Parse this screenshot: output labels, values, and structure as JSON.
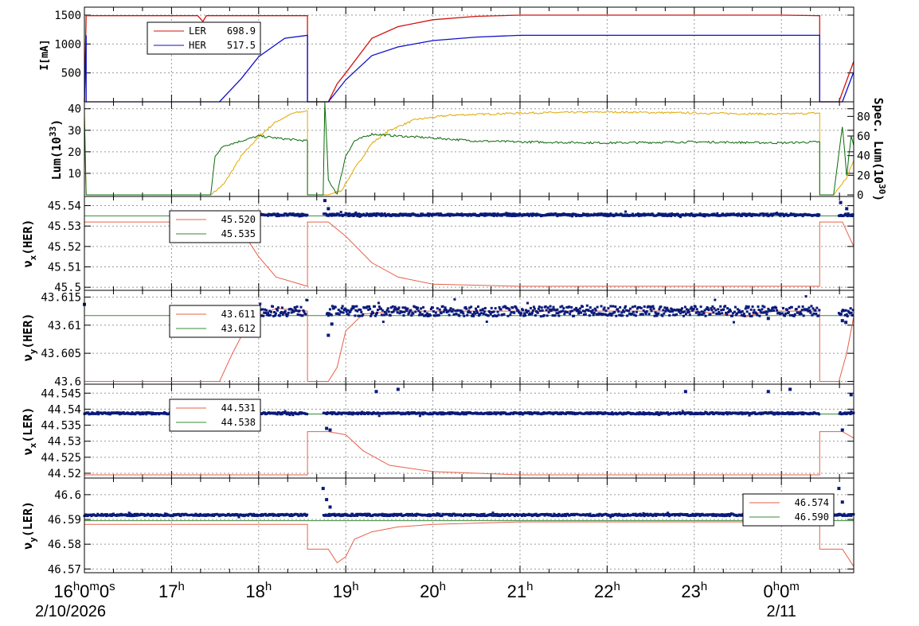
{
  "colors": {
    "ler": "#d0140f",
    "her": "#1010c8",
    "lum": "#e0a800",
    "spec": "#0a6a0a",
    "set": "#e8604a",
    "meas_line": "#3a8a3a",
    "meas_pts": "#0a1a7a"
  },
  "x_axis": {
    "ticks": [
      {
        "t": 0,
        "h": "16",
        "rest": "0",
        "rest2": "0",
        "rest3": "s"
      },
      {
        "t": 1,
        "h": "17"
      },
      {
        "t": 2,
        "h": "18"
      },
      {
        "t": 3,
        "h": "19"
      },
      {
        "t": 4,
        "h": "20"
      },
      {
        "t": 5,
        "h": "21"
      },
      {
        "t": 6,
        "h": "22"
      },
      {
        "t": 7,
        "h": "23"
      },
      {
        "t": 8,
        "h": "0",
        "rest": "0",
        "rest3": "m"
      }
    ],
    "date_start": "2/10/2026",
    "date_end": "2/11",
    "range": [
      0,
      8.83
    ]
  },
  "chart_data": [
    {
      "type": "line",
      "panel": "current",
      "ylabel": "I[mA]",
      "yticks": [
        "500",
        "1000",
        "1500"
      ],
      "ylim": [
        0,
        1500
      ],
      "legend": {
        "entries": [
          {
            "name": "LER",
            "value": "698.9"
          },
          {
            "name": "HER",
            "value": "517.5"
          }
        ],
        "placement": "top-left"
      },
      "series": [
        {
          "name": "LER",
          "values": [
            [
              0,
              0
            ],
            [
              0.02,
              1490
            ],
            [
              1.3,
              1490
            ],
            [
              1.36,
              1390
            ],
            [
              1.4,
              1490
            ],
            [
              2.56,
              1490
            ],
            [
              2.56,
              0
            ],
            [
              2.8,
              0
            ],
            [
              2.9,
              310
            ],
            [
              3.0,
              500
            ],
            [
              3.3,
              1100
            ],
            [
              3.6,
              1300
            ],
            [
              4.0,
              1420
            ],
            [
              4.5,
              1480
            ],
            [
              5.0,
              1500
            ],
            [
              6.0,
              1500
            ],
            [
              7.0,
              1500
            ],
            [
              8.0,
              1500
            ],
            [
              8.44,
              1490
            ],
            [
              8.44,
              0
            ],
            [
              8.66,
              0
            ],
            [
              8.83,
              699
            ]
          ]
        },
        {
          "name": "HER",
          "values": [
            [
              0,
              0
            ],
            [
              0.02,
              1150
            ],
            [
              0.02,
              0
            ],
            [
              1.55,
              0
            ],
            [
              1.8,
              400
            ],
            [
              2.0,
              780
            ],
            [
              2.3,
              1100
            ],
            [
              2.56,
              1150
            ],
            [
              2.56,
              0
            ],
            [
              2.8,
              0
            ],
            [
              3.0,
              380
            ],
            [
              3.3,
              800
            ],
            [
              3.6,
              950
            ],
            [
              4.0,
              1060
            ],
            [
              4.5,
              1120
            ],
            [
              5.0,
              1150
            ],
            [
              8.0,
              1150
            ],
            [
              8.44,
              1150
            ],
            [
              8.44,
              0
            ],
            [
              8.7,
              0
            ],
            [
              8.83,
              518
            ]
          ]
        }
      ]
    },
    {
      "type": "line",
      "panel": "luminosity",
      "ylabel": "Lum(10",
      "ylabel_sup": "33",
      "ylabel_end": ")",
      "ylabel_right": "Spec. Lum(10",
      "ylabel_right_sup": "30",
      "ylabel_right_end": ")",
      "yticks": [
        "10",
        "20",
        "30",
        "40"
      ],
      "yticks_right": [
        "0",
        "20",
        "40",
        "60",
        "80"
      ],
      "ylim": [
        0,
        41
      ],
      "ylim_right": [
        0,
        90
      ],
      "series": [
        {
          "values": [
            [
              0,
              38
            ],
            [
              0.02,
              0
            ],
            [
              1.45,
              0
            ],
            [
              1.6,
              5
            ],
            [
              1.8,
              18
            ],
            [
              2.0,
              27
            ],
            [
              2.2,
              34
            ],
            [
              2.4,
              38
            ],
            [
              2.56,
              39
            ],
            [
              2.56,
              0
            ],
            [
              2.8,
              0
            ],
            [
              2.95,
              2
            ],
            [
              3.1,
              12
            ],
            [
              3.3,
              24
            ],
            [
              3.5,
              30
            ],
            [
              3.8,
              35
            ],
            [
              4.2,
              37
            ],
            [
              5.0,
              38
            ],
            [
              6.0,
              38.5
            ],
            [
              7.0,
              38
            ],
            [
              8.0,
              37.5
            ],
            [
              8.44,
              38
            ],
            [
              8.44,
              0
            ],
            [
              8.6,
              0
            ],
            [
              8.75,
              8
            ],
            [
              8.83,
              16
            ]
          ]
        },
        {
          "values": [
            [
              0,
              80
            ],
            [
              0.02,
              0
            ],
            [
              1.45,
              0
            ],
            [
              1.5,
              40
            ],
            [
              1.6,
              50
            ],
            [
              1.8,
              55
            ],
            [
              2.0,
              60
            ],
            [
              2.3,
              57
            ],
            [
              2.56,
              55
            ],
            [
              2.56,
              0
            ],
            [
              2.74,
              0
            ],
            [
              2.76,
              95
            ],
            [
              2.8,
              15
            ],
            [
              2.9,
              1
            ],
            [
              3.0,
              40
            ],
            [
              3.1,
              55
            ],
            [
              3.3,
              62
            ],
            [
              3.6,
              60
            ],
            [
              4.0,
              58
            ],
            [
              4.5,
              55
            ],
            [
              5.0,
              54
            ],
            [
              6.0,
              53
            ],
            [
              7.0,
              54
            ],
            [
              8.0,
              53
            ],
            [
              8.44,
              54
            ],
            [
              8.44,
              0
            ],
            [
              8.6,
              0
            ],
            [
              8.7,
              70
            ],
            [
              8.75,
              20
            ],
            [
              8.8,
              60
            ],
            [
              8.83,
              50
            ]
          ]
        }
      ]
    },
    {
      "type": "scatter",
      "panel": "nux_her",
      "ylabel": "ν",
      "ylabel_sub": "x",
      "ylabel_end": "(HER)",
      "yticks": [
        "45.5",
        "45.51",
        "45.52",
        "45.53",
        "45.54"
      ],
      "ylim": [
        45.4985,
        45.5445
      ],
      "legend": {
        "entries": [
          {
            "name": "",
            "value": "45.520"
          },
          {
            "name": "",
            "value": "45.535"
          }
        ],
        "placement": "top-left"
      },
      "set_values": [
        [
          0,
          45.532
        ],
        [
          1.4,
          45.532
        ],
        [
          1.8,
          45.528
        ],
        [
          2.0,
          45.515
        ],
        [
          2.2,
          45.505
        ],
        [
          2.56,
          45.5005
        ],
        [
          2.56,
          45.532
        ],
        [
          2.8,
          45.532
        ],
        [
          3.0,
          45.525
        ],
        [
          3.3,
          45.512
        ],
        [
          3.6,
          45.505
        ],
        [
          4.0,
          45.5015
        ],
        [
          5.0,
          45.5005
        ],
        [
          8.44,
          45.5005
        ],
        [
          8.44,
          45.532
        ],
        [
          8.7,
          45.532
        ],
        [
          8.83,
          45.52
        ]
      ],
      "meas_line": 45.535,
      "meas_pts": {
        "x_range": [
          1.55,
          8.83
        ],
        "gaps": [
          [
            2.56,
            2.74
          ],
          [
            8.44,
            8.66
          ]
        ],
        "y": 45.5355,
        "jitter": 0.0006,
        "outliers": [
          [
            2.76,
            45.5425
          ],
          [
            2.8,
            45.5385
          ],
          [
            8.68,
            45.5415
          ],
          [
            8.75,
            45.5385
          ]
        ]
      }
    },
    {
      "type": "scatter",
      "panel": "nuy_her",
      "ylabel": "ν",
      "ylabel_sub": "y",
      "ylabel_end": "(HER)",
      "yticks": [
        "43.6",
        "43.605",
        "43.61",
        "43.615"
      ],
      "ylim": [
        43.5995,
        43.6162
      ],
      "legend": {
        "entries": [
          {
            "name": "",
            "value": "43.611"
          },
          {
            "name": "",
            "value": "43.612"
          }
        ],
        "placement": "top-left"
      },
      "set_values": [
        [
          0,
          43.6
        ],
        [
          1.55,
          43.6
        ],
        [
          1.7,
          43.605
        ],
        [
          1.9,
          43.611
        ],
        [
          2.2,
          43.613
        ],
        [
          2.56,
          43.6125
        ],
        [
          2.56,
          43.6
        ],
        [
          2.8,
          43.6
        ],
        [
          2.9,
          43.6025
        ],
        [
          3.0,
          43.609
        ],
        [
          3.2,
          43.612
        ],
        [
          3.6,
          43.6125
        ],
        [
          4.0,
          43.6125
        ],
        [
          5.0,
          43.6125
        ],
        [
          6.0,
          43.6125
        ],
        [
          7.0,
          43.6125
        ],
        [
          7.6,
          43.6115
        ],
        [
          7.8,
          43.6125
        ],
        [
          8.44,
          43.6125
        ],
        [
          8.44,
          43.6
        ],
        [
          8.66,
          43.6
        ],
        [
          8.75,
          43.605
        ],
        [
          8.83,
          43.6115
        ]
      ],
      "meas_line": 43.6117,
      "meas_pts": {
        "x_range": [
          1.55,
          8.83
        ],
        "gaps": [
          [
            2.56,
            2.78
          ],
          [
            8.44,
            8.66
          ]
        ],
        "y": 43.6125,
        "jitter": 0.0009,
        "outliers": [
          [
            0.0,
            43.6137
          ],
          [
            2.8,
            43.6082
          ],
          [
            2.84,
            43.6102
          ],
          [
            8.7,
            43.6108
          ],
          [
            8.74,
            43.6105
          ],
          [
            7.85,
            43.6112
          ]
        ]
      }
    },
    {
      "type": "scatter",
      "panel": "nux_ler",
      "ylabel": "ν",
      "ylabel_sub": "x",
      "ylabel_end": "(LER)",
      "yticks": [
        "44.52",
        "44.525",
        "44.53",
        "44.535",
        "44.54",
        "44.545"
      ],
      "ylim": [
        44.5185,
        44.5478
      ],
      "legend": {
        "entries": [
          {
            "name": "",
            "value": "44.531"
          },
          {
            "name": "",
            "value": "44.538"
          }
        ],
        "placement": "top-left"
      },
      "set_values": [
        [
          0,
          44.5195
        ],
        [
          2.56,
          44.5195
        ],
        [
          2.56,
          44.533
        ],
        [
          2.8,
          44.533
        ],
        [
          3.0,
          44.532
        ],
        [
          3.2,
          44.527
        ],
        [
          3.5,
          44.5225
        ],
        [
          4.0,
          44.5205
        ],
        [
          5.0,
          44.5195
        ],
        [
          8.44,
          44.5195
        ],
        [
          8.44,
          44.533
        ],
        [
          8.7,
          44.533
        ],
        [
          8.83,
          44.531
        ]
      ],
      "meas_line": 44.5385,
      "meas_pts": {
        "x_range": [
          0,
          8.83
        ],
        "gaps": [
          [
            2.56,
            2.74
          ],
          [
            8.44,
            8.66
          ]
        ],
        "y": 44.5387,
        "jitter": 0.0003,
        "outliers": [
          [
            2.78,
            44.534
          ],
          [
            2.82,
            44.5335
          ],
          [
            3.35,
            44.5455
          ],
          [
            3.6,
            44.5462
          ],
          [
            6.9,
            44.5455
          ],
          [
            7.85,
            44.5455
          ],
          [
            8.1,
            44.5462
          ],
          [
            8.7,
            44.5335
          ],
          [
            8.8,
            44.5445
          ]
        ]
      }
    },
    {
      "type": "scatter",
      "panel": "nuy_ler",
      "ylabel": "ν",
      "ylabel_sub": "y",
      "ylabel_end": "(LER)",
      "yticks": [
        "46.57",
        "46.58",
        "46.59",
        "46.6"
      ],
      "ylim": [
        46.5685,
        46.6067
      ],
      "legend": {
        "entries": [
          {
            "name": "",
            "value": "46.574"
          },
          {
            "name": "",
            "value": "46.590"
          }
        ],
        "placement": "top-right"
      },
      "set_values": [
        [
          0,
          46.588
        ],
        [
          2.56,
          46.588
        ],
        [
          2.56,
          46.578
        ],
        [
          2.8,
          46.578
        ],
        [
          2.9,
          46.5725
        ],
        [
          3.0,
          46.575
        ],
        [
          3.1,
          46.582
        ],
        [
          3.3,
          46.585
        ],
        [
          3.6,
          46.587
        ],
        [
          4.0,
          46.588
        ],
        [
          5.0,
          46.589
        ],
        [
          8.44,
          46.589
        ],
        [
          8.44,
          46.578
        ],
        [
          8.7,
          46.578
        ],
        [
          8.83,
          46.571
        ]
      ],
      "meas_line": 46.5895,
      "meas_pts": {
        "x_range": [
          0,
          8.83
        ],
        "gaps": [
          [
            2.56,
            2.74
          ]
        ],
        "y": 46.5918,
        "jitter": 0.0004,
        "outliers": [
          [
            2.74,
            46.6025
          ],
          [
            2.78,
            46.598
          ],
          [
            2.82,
            46.595
          ],
          [
            8.66,
            46.6025
          ],
          [
            8.7,
            46.597
          ]
        ]
      }
    }
  ]
}
